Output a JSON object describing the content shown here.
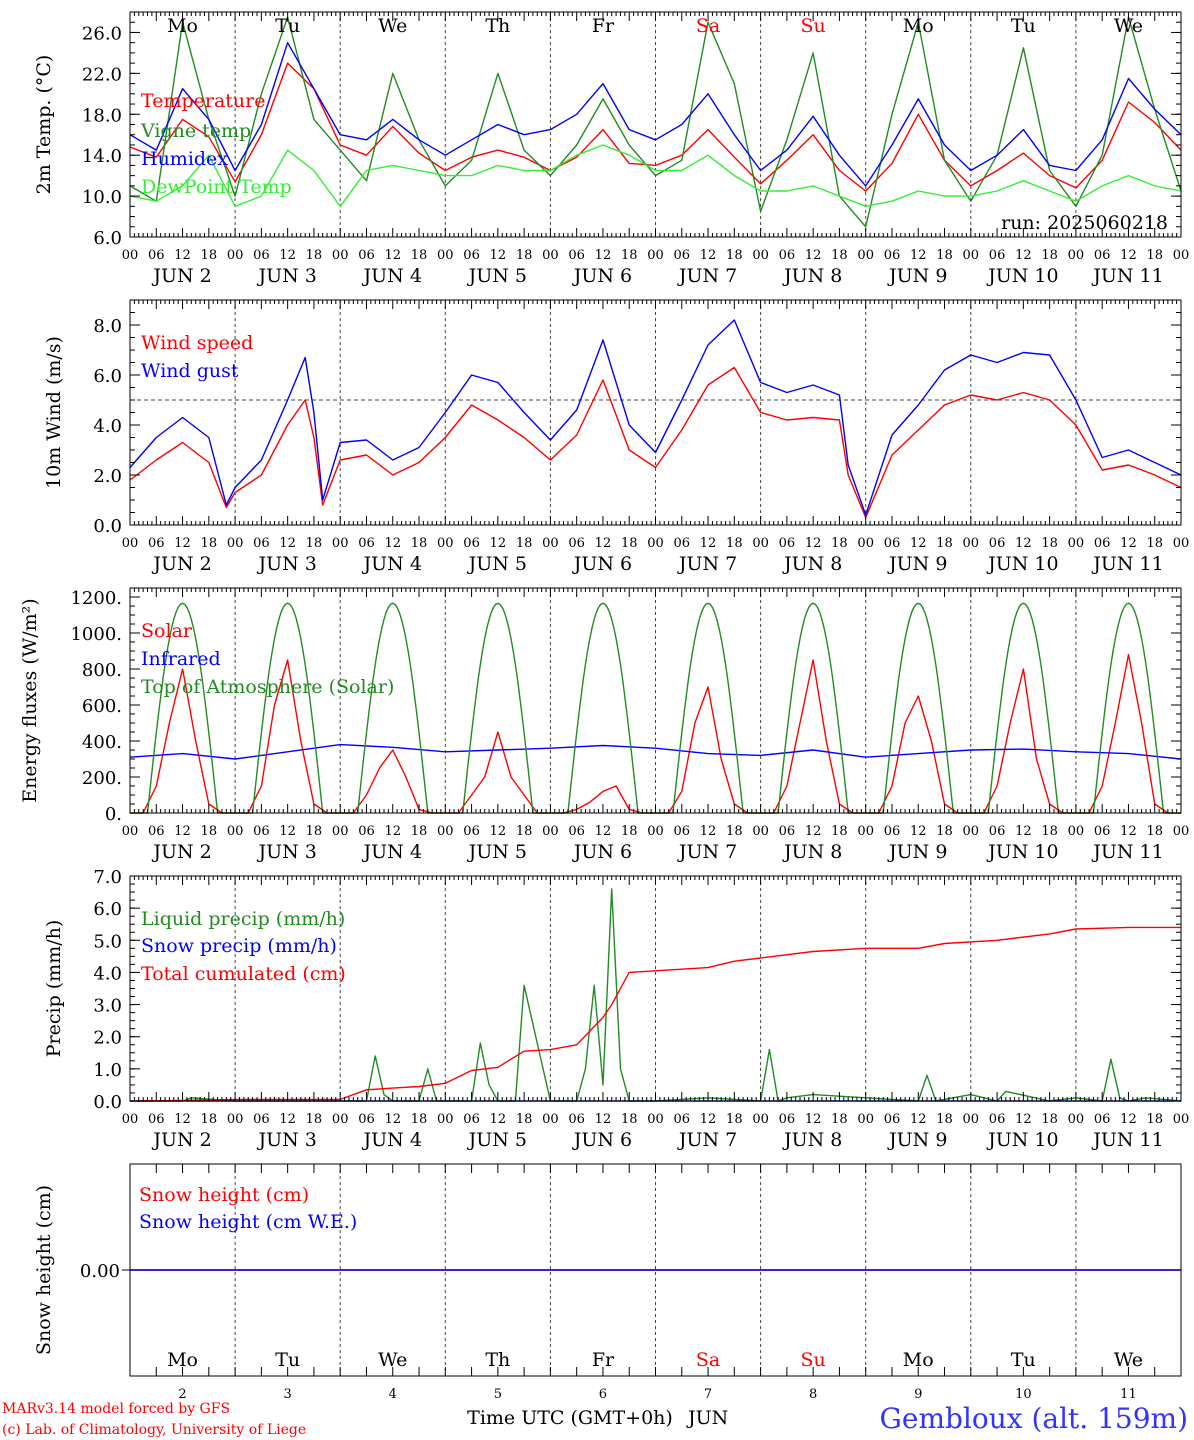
{
  "colors": {
    "red": "#ff0000",
    "green": "#228b22",
    "blue": "#0000ff",
    "lightgreen": "#33ee33",
    "axis": "#000000",
    "weekend": "#ff0000",
    "station": "#3333ff"
  },
  "header": {
    "run": "run: 2025060218",
    "day_names": [
      "Mo",
      "Tu",
      "We",
      "Th",
      "Fr",
      "Sa",
      "Su",
      "Mo",
      "Tu",
      "We"
    ],
    "weekend_flags": [
      false,
      false,
      false,
      false,
      false,
      true,
      true,
      false,
      false,
      false
    ]
  },
  "xaxis": {
    "hour_labels": [
      "00",
      "06",
      "12",
      "18"
    ],
    "end_label": "00",
    "month": "JUN",
    "dates": [
      "2",
      "3",
      "4",
      "5",
      "6",
      "7",
      "8",
      "9",
      "10",
      "11"
    ],
    "title": "Time UTC (GMT+0h)",
    "month_suffix": "JUN"
  },
  "footer": {
    "credit1": "MARv3.14 model forced by GFS",
    "credit2": "(c) Lab. of Climatology, University of Liege",
    "station": "Gembloux (alt. 159m)"
  },
  "chart_data": [
    {
      "type": "line",
      "id": "temp",
      "ylabel": "2m Temp. (°C)",
      "ylim": [
        6,
        28
      ],
      "yticks": [
        "6.0",
        "10.0",
        "14.0",
        "18.0",
        "22.0",
        "26.0"
      ],
      "x_unit": "hours since JUN 2 00 UTC",
      "series": [
        {
          "name": "Temperature",
          "color": "red",
          "x": [
            0,
            6,
            12,
            18,
            24,
            30,
            36,
            42,
            48,
            54,
            60,
            66,
            72,
            78,
            84,
            90,
            96,
            102,
            108,
            114,
            120,
            126,
            132,
            138,
            144,
            150,
            156,
            162,
            168,
            174,
            180,
            186,
            192,
            198,
            204,
            210,
            216,
            222,
            228,
            234,
            240
          ],
          "values": [
            14.8,
            13.8,
            17.5,
            15.8,
            11.4,
            16.0,
            23.0,
            20.5,
            15.0,
            14.0,
            16.8,
            14.2,
            12.5,
            13.8,
            14.5,
            13.8,
            12.5,
            13.8,
            16.5,
            13.2,
            13.0,
            14.0,
            16.5,
            13.8,
            11.2,
            13.5,
            16.0,
            12.5,
            10.5,
            13.2,
            18.0,
            13.5,
            11.0,
            12.5,
            14.2,
            12.0,
            10.8,
            13.5,
            19.2,
            17.2,
            14.5
          ]
        },
        {
          "name": "Vigne temp",
          "color": "green",
          "x": [
            0,
            6,
            12,
            18,
            24,
            30,
            36,
            42,
            48,
            54,
            60,
            66,
            72,
            78,
            84,
            90,
            96,
            102,
            108,
            114,
            120,
            126,
            132,
            138,
            144,
            150,
            156,
            162,
            168,
            174,
            180,
            186,
            192,
            198,
            204,
            210,
            216,
            222,
            228,
            234,
            240
          ],
          "values": [
            11.0,
            9.5,
            27.0,
            17.5,
            10.0,
            20.0,
            27.5,
            17.5,
            14.5,
            11.5,
            22.0,
            15.5,
            11.0,
            13.5,
            22.0,
            14.5,
            12.0,
            15.0,
            19.5,
            15.0,
            12.0,
            13.5,
            27.0,
            21.0,
            8.5,
            15.5,
            24.0,
            10.0,
            7.0,
            18.0,
            27.0,
            13.5,
            9.5,
            14.0,
            24.5,
            12.5,
            9.0,
            14.0,
            27.5,
            18.5,
            10.5
          ]
        },
        {
          "name": "Humidex",
          "color": "blue",
          "x": [
            0,
            6,
            12,
            18,
            24,
            30,
            36,
            42,
            48,
            54,
            60,
            66,
            72,
            78,
            84,
            90,
            96,
            102,
            108,
            114,
            120,
            126,
            132,
            138,
            144,
            150,
            156,
            162,
            168,
            174,
            180,
            186,
            192,
            198,
            204,
            210,
            216,
            222,
            228,
            234,
            240
          ],
          "values": [
            16.0,
            14.5,
            20.5,
            17.5,
            12.5,
            17.0,
            25.0,
            20.5,
            16.0,
            15.5,
            17.5,
            15.5,
            14.0,
            15.5,
            17.0,
            16.0,
            16.5,
            18.0,
            21.0,
            16.5,
            15.5,
            17.0,
            20.0,
            16.0,
            12.5,
            14.5,
            17.8,
            14.0,
            11.0,
            15.0,
            19.5,
            15.0,
            12.5,
            14.0,
            16.5,
            13.0,
            12.5,
            15.5,
            21.5,
            18.5,
            16.0
          ]
        },
        {
          "name": "DewPoint Temp",
          "color": "lightgreen",
          "x": [
            0,
            6,
            12,
            18,
            24,
            30,
            36,
            42,
            48,
            54,
            60,
            66,
            72,
            78,
            84,
            90,
            96,
            102,
            108,
            114,
            120,
            126,
            132,
            138,
            144,
            150,
            156,
            162,
            168,
            174,
            180,
            186,
            192,
            198,
            204,
            210,
            216,
            222,
            228,
            234,
            240
          ],
          "values": [
            10.0,
            9.5,
            11.0,
            14.0,
            9.0,
            10.0,
            14.5,
            12.5,
            9.0,
            12.5,
            13.0,
            12.5,
            12.0,
            12.0,
            13.0,
            12.5,
            12.5,
            14.0,
            15.0,
            14.0,
            12.5,
            12.5,
            14.0,
            12.0,
            10.5,
            10.5,
            11.0,
            10.0,
            9.0,
            9.5,
            10.5,
            10.0,
            10.0,
            10.5,
            11.5,
            10.5,
            9.5,
            11.0,
            12.0,
            11.0,
            10.5
          ]
        }
      ]
    },
    {
      "type": "line",
      "id": "wind",
      "ylabel": "10m Wind (m/s)",
      "ylim": [
        0,
        9
      ],
      "yticks": [
        "0.0",
        "2.0",
        "4.0",
        "6.0",
        "8.0"
      ],
      "reference_line": 5,
      "series": [
        {
          "name": "Wind speed",
          "color": "red",
          "x": [
            0,
            6,
            12,
            18,
            22,
            24,
            30,
            36,
            40,
            42,
            44,
            48,
            54,
            60,
            66,
            72,
            78,
            84,
            90,
            96,
            102,
            108,
            114,
            120,
            126,
            132,
            138,
            144,
            150,
            156,
            162,
            164,
            168,
            174,
            180,
            186,
            192,
            198,
            204,
            210,
            216,
            222,
            228,
            234,
            240
          ],
          "values": [
            1.8,
            2.6,
            3.3,
            2.5,
            0.7,
            1.3,
            2.0,
            4.0,
            5.0,
            3.5,
            0.8,
            2.6,
            2.8,
            2.0,
            2.5,
            3.5,
            4.8,
            4.2,
            3.5,
            2.6,
            3.6,
            5.8,
            3.0,
            2.3,
            3.8,
            5.6,
            6.3,
            4.5,
            4.2,
            4.3,
            4.2,
            2.0,
            0.3,
            2.8,
            3.8,
            4.8,
            5.2,
            5.0,
            5.3,
            5.0,
            4.0,
            2.2,
            2.4,
            2.0,
            1.5
          ]
        },
        {
          "name": "Wind gust",
          "color": "blue",
          "x": [
            0,
            6,
            12,
            18,
            22,
            24,
            30,
            36,
            40,
            42,
            44,
            48,
            54,
            60,
            66,
            72,
            78,
            84,
            90,
            96,
            102,
            108,
            114,
            120,
            126,
            132,
            138,
            144,
            150,
            156,
            162,
            164,
            168,
            174,
            180,
            186,
            192,
            198,
            204,
            210,
            216,
            222,
            228,
            234,
            240
          ],
          "values": [
            2.3,
            3.5,
            4.3,
            3.5,
            0.8,
            1.5,
            2.6,
            5.0,
            6.7,
            4.5,
            1.0,
            3.3,
            3.4,
            2.6,
            3.1,
            4.5,
            6.0,
            5.7,
            4.5,
            3.4,
            4.6,
            7.4,
            4.0,
            2.9,
            5.0,
            7.2,
            8.2,
            5.7,
            5.3,
            5.6,
            5.2,
            2.4,
            0.4,
            3.6,
            4.8,
            6.2,
            6.8,
            6.5,
            6.9,
            6.8,
            5.0,
            2.7,
            3.0,
            2.5,
            2.0
          ]
        }
      ]
    },
    {
      "type": "line",
      "id": "energy",
      "ylabel": "Energy fluxes (W/m²)",
      "ylim": [
        0,
        1250
      ],
      "yticks": [
        "0.",
        "200.",
        "400.",
        "600.",
        "800.",
        "1000.",
        "1200."
      ],
      "series": [
        {
          "name": "Solar",
          "color": "red",
          "x": [
            0,
            3,
            6,
            9,
            12,
            15,
            18,
            21,
            24,
            27,
            30,
            33,
            36,
            39,
            42,
            45,
            48,
            51,
            54,
            57,
            60,
            63,
            66,
            69,
            72,
            75,
            78,
            81,
            84,
            87,
            90,
            93,
            96,
            99,
            102,
            105,
            108,
            111,
            114,
            117,
            120,
            123,
            126,
            129,
            132,
            135,
            138,
            141,
            144,
            147,
            150,
            153,
            156,
            159,
            162,
            165,
            168,
            171,
            174,
            177,
            180,
            183,
            186,
            189,
            192,
            195,
            198,
            201,
            204,
            207,
            210,
            213,
            216,
            219,
            222,
            225,
            228,
            231,
            234,
            237,
            240
          ],
          "values": [
            0,
            0,
            150,
            500,
            800,
            400,
            50,
            0,
            0,
            0,
            150,
            600,
            850,
            400,
            50,
            0,
            0,
            0,
            100,
            250,
            350,
            200,
            20,
            0,
            0,
            0,
            100,
            200,
            450,
            200,
            100,
            0,
            0,
            0,
            20,
            60,
            120,
            150,
            20,
            0,
            0,
            0,
            120,
            500,
            700,
            300,
            50,
            0,
            0,
            0,
            150,
            500,
            850,
            400,
            50,
            0,
            0,
            0,
            150,
            500,
            650,
            400,
            50,
            0,
            0,
            0,
            150,
            500,
            800,
            300,
            50,
            0,
            0,
            0,
            150,
            500,
            880,
            500,
            50,
            0,
            0
          ]
        },
        {
          "name": "Infrared",
          "color": "blue",
          "x": [
            0,
            12,
            24,
            36,
            48,
            60,
            72,
            84,
            96,
            108,
            120,
            132,
            144,
            156,
            168,
            180,
            192,
            204,
            216,
            228,
            240
          ],
          "values": [
            310,
            330,
            300,
            340,
            380,
            365,
            340,
            350,
            360,
            375,
            360,
            330,
            320,
            350,
            310,
            330,
            350,
            355,
            340,
            330,
            300
          ]
        },
        {
          "name": "Top of Atmosphere (Solar)",
          "color": "green",
          "daylight_hours": [
            4,
            20
          ],
          "peak": 1165
        }
      ]
    },
    {
      "type": "line",
      "id": "precip",
      "ylabel": "Precip (mm/h)",
      "ylim": [
        0,
        7
      ],
      "yticks": [
        "0.0",
        "1.0",
        "2.0",
        "3.0",
        "4.0",
        "5.0",
        "6.0",
        "7.0"
      ],
      "series": [
        {
          "name": "Liquid precip (mm/h)",
          "color": "green",
          "x": [
            0,
            12,
            14,
            24,
            48,
            54,
            56,
            58,
            60,
            66,
            68,
            70,
            72,
            78,
            80,
            82,
            84,
            86,
            88,
            90,
            96,
            102,
            104,
            106,
            108,
            110,
            112,
            114,
            120,
            132,
            144,
            146,
            148,
            150,
            156,
            168,
            180,
            182,
            184,
            192,
            198,
            200,
            210,
            216,
            222,
            224,
            226,
            228,
            232,
            240
          ],
          "values": [
            0,
            0,
            0.1,
            0,
            0,
            0,
            1.4,
            0.2,
            0,
            0,
            1.0,
            0,
            0,
            0,
            1.8,
            0.5,
            0,
            0,
            0,
            3.6,
            0,
            0,
            1.0,
            3.6,
            0.5,
            6.6,
            1.0,
            0,
            0,
            0.1,
            0,
            1.6,
            0,
            0.1,
            0.2,
            0.1,
            0,
            0.8,
            0,
            0.2,
            0,
            0.3,
            0,
            0.1,
            0,
            1.3,
            0.1,
            0,
            0.1,
            0
          ]
        },
        {
          "name": "Snow precip (mm/h)",
          "color": "blue",
          "x": [
            0,
            240
          ],
          "values": [
            0,
            0
          ]
        },
        {
          "name": "Total cumulated (cm)",
          "color": "red",
          "x": [
            0,
            12,
            24,
            48,
            54,
            60,
            66,
            72,
            78,
            84,
            90,
            96,
            102,
            108,
            110,
            114,
            120,
            132,
            138,
            144,
            156,
            168,
            180,
            186,
            198,
            210,
            216,
            228,
            240
          ],
          "values": [
            0,
            0.02,
            0.05,
            0.05,
            0.35,
            0.4,
            0.45,
            0.55,
            0.95,
            1.05,
            1.55,
            1.6,
            1.75,
            2.6,
            3.0,
            4.0,
            4.05,
            4.15,
            4.35,
            4.45,
            4.65,
            4.75,
            4.75,
            4.9,
            5.0,
            5.2,
            5.35,
            5.4,
            5.4
          ]
        }
      ]
    },
    {
      "type": "line",
      "id": "snow",
      "ylabel": "Snow height (cm)",
      "ylim": [
        -1,
        1
      ],
      "yticks": [
        "0.00"
      ],
      "series": [
        {
          "name": "Snow height (cm)",
          "color": "red",
          "x": [
            0,
            240
          ],
          "values": [
            0,
            0
          ]
        },
        {
          "name": "Snow height (cm W.E.)",
          "color": "blue",
          "x": [
            0,
            240
          ],
          "values": [
            0,
            0
          ]
        }
      ]
    }
  ]
}
